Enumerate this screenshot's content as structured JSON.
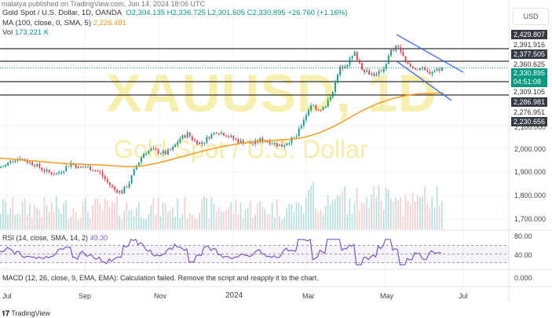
{
  "header": {
    "published": "malatya published on TradingView.com, Jun 14, 2024 18:06 UTC",
    "title": "Gold Spot / U.S. Dollar, 1D, OANDA",
    "open": "O2,304.135",
    "high": "H2,336.725",
    "low": "L2,301.605",
    "close": "C2,330.895",
    "change": "+26.760 (+1.16%)",
    "ma_label": "MA (100, close, 0, SMA, 5)",
    "ma_value": "2,226.481",
    "vol_label": "Vol",
    "vol_value": "173.221 K"
  },
  "watermark": {
    "symbol": "XAUUSD, 1D",
    "name": "Gold Spot / U.S. Dollar"
  },
  "price_axis": {
    "currency": "USD",
    "tags": [
      {
        "v": "2,429.807",
        "style": "dark"
      },
      {
        "v": "2,391.916",
        "style": "plain"
      },
      {
        "v": "2,377.505",
        "style": "dark"
      },
      {
        "v": "2,360.625",
        "style": "plain"
      },
      {
        "v": "2,309.105",
        "style": "plain"
      },
      {
        "v": "2,286.981",
        "style": "dark"
      },
      {
        "v": "2,276.951",
        "style": "plain"
      },
      {
        "v": "2,230.656",
        "style": "dark"
      }
    ],
    "current": "2,330.895",
    "countdown": "04:51:08",
    "ticks": [
      "2,100.000",
      "2,000.000",
      "1,900.000",
      "1,800.000",
      "1,700.000"
    ]
  },
  "rsi": {
    "label": "RSI (14, close, SMA, 14, 2)",
    "value": "49.30",
    "ticks": [
      "80.00",
      "40.00"
    ]
  },
  "macd": {
    "label": "MACD (12, 26, close, 9, EMA, EMA): Calculation failed. Remove the script and reapply it to the chart.",
    "tick": "0.000"
  },
  "footer": {
    "brand": "TradingView"
  },
  "colors": {
    "up": "#089981",
    "down": "#f23645",
    "ma": "#f59b20",
    "rsi": "#7e57c2",
    "channel": "#2962ff"
  },
  "chart_data": {
    "type": "candlestick",
    "x_ticks": [
      "Jul",
      "Sep",
      "Nov",
      "2024",
      "Mar",
      "May",
      "Jul"
    ],
    "weekly_close": [
      1920,
      1930,
      1955,
      1960,
      1945,
      1935,
      1915,
      1900,
      1895,
      1915,
      1940,
      1920,
      1925,
      1915,
      1900,
      1860,
      1830,
      1820,
      1860,
      1930,
      1980,
      1995,
      1985,
      1980,
      2000,
      2040,
      2060,
      2030,
      2020,
      2050,
      2070,
      2060,
      2045,
      2030,
      2025,
      2020,
      2035,
      2030,
      2020,
      2010,
      2030,
      2050,
      2120,
      2180,
      2160,
      2170,
      2240,
      2330,
      2350,
      2390,
      2330,
      2310,
      2300,
      2330,
      2400,
      2420,
      2350,
      2330,
      2330,
      2310,
      2320,
      2330
    ],
    "ma100": [
      1960,
      1958,
      1955,
      1952,
      1950,
      1948,
      1945,
      1942,
      1940,
      1938,
      1936,
      1935,
      1934,
      1933,
      1932,
      1930,
      1928,
      1926,
      1925,
      1926,
      1930,
      1936,
      1942,
      1950,
      1958,
      1966,
      1974,
      1982,
      1990,
      1997,
      2004,
      2010,
      2015,
      2020,
      2024,
      2028,
      2030,
      2032,
      2034,
      2036,
      2038,
      2041,
      2047,
      2055,
      2065,
      2078,
      2092,
      2108,
      2125,
      2142,
      2158,
      2172,
      2185,
      2195,
      2205,
      2212,
      2218,
      2222,
      2225,
      2226,
      2227,
      2227
    ],
    "horizontal_levels": [
      2377.505,
      2360.625,
      2309.105,
      2286.981
    ],
    "rsi_range": [
      20,
      90
    ],
    "rsi_levels": [
      70,
      50,
      30
    ]
  }
}
